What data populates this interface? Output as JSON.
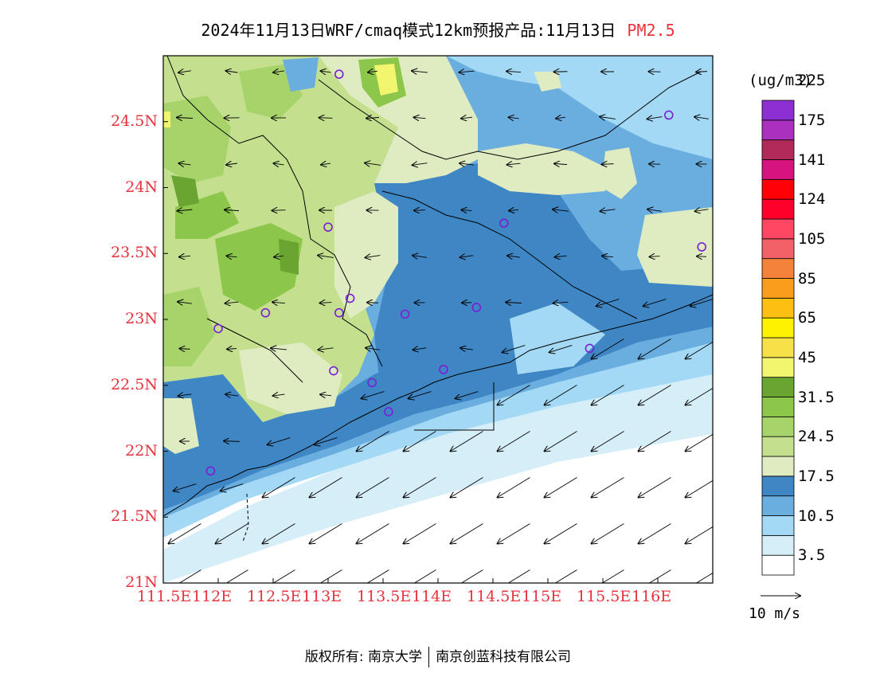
{
  "title": {
    "main": "2024年11月13日WRF/cmaq模式12km预报产品:11月13日",
    "pollutant": "PM2.5"
  },
  "legend": {
    "unit": "(ug/m3)",
    "colors": [
      "#ffffff",
      "#d6eef8",
      "#a3d9f5",
      "#6aaee0",
      "#3f86c4",
      "#dfebc0",
      "#c4e08e",
      "#a6d36a",
      "#8cc74b",
      "#6aa431",
      "#f2f66e",
      "#f6e248",
      "#fff200",
      "#fcbf12",
      "#fa9c1c",
      "#f4823a",
      "#f26167",
      "#ff4763",
      "#ff002a",
      "#ff0007",
      "#d71380",
      "#b12a5a",
      "#ac30be",
      "#8d2fd2"
    ],
    "ticks": [
      "3.5",
      "10.5",
      "17.5",
      "24.5",
      "31.5",
      "45",
      "65",
      "85",
      "105",
      "124",
      "141",
      "175",
      "225"
    ]
  },
  "axes": {
    "x_ticks": [
      "111.5E",
      "112E",
      "112.5E",
      "113E",
      "113.5E",
      "114E",
      "114.5E",
      "115E",
      "115.5E",
      "116E"
    ],
    "y_ticks": [
      "21N",
      "21.5N",
      "22N",
      "22.5N",
      "23N",
      "23.5N",
      "24N",
      "24.5N"
    ],
    "x_range": [
      111.5,
      116.5
    ],
    "y_range": [
      21.0,
      25.0
    ]
  },
  "wind_reference": {
    "label": "10 m/s"
  },
  "stations": [
    {
      "lon": 113.1,
      "lat": 24.86
    },
    {
      "lon": 116.1,
      "lat": 24.55
    },
    {
      "lon": 113.0,
      "lat": 23.7
    },
    {
      "lon": 114.6,
      "lat": 23.73
    },
    {
      "lon": 116.4,
      "lat": 23.55
    },
    {
      "lon": 112.0,
      "lat": 22.93
    },
    {
      "lon": 112.43,
      "lat": 23.05
    },
    {
      "lon": 113.1,
      "lat": 23.05
    },
    {
      "lon": 113.2,
      "lat": 23.16
    },
    {
      "lon": 113.7,
      "lat": 23.04
    },
    {
      "lon": 114.35,
      "lat": 23.09
    },
    {
      "lon": 115.38,
      "lat": 22.78
    },
    {
      "lon": 113.05,
      "lat": 22.61
    },
    {
      "lon": 113.4,
      "lat": 22.52
    },
    {
      "lon": 114.05,
      "lat": 22.62
    },
    {
      "lon": 113.55,
      "lat": 22.3
    },
    {
      "lon": 111.93,
      "lat": 21.85
    }
  ],
  "footer": {
    "left": "版权所有: 南京大学",
    "right": "南京创蓝科技有限公司"
  }
}
